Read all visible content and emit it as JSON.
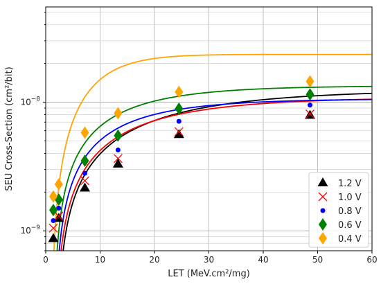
{
  "chart_data": {
    "type": "scatter",
    "title": "",
    "xlabel": "LET (MeV.cm²/mg)",
    "ylabel": "SEU Cross-Section (cm²/bit)",
    "xlim": [
      0,
      60
    ],
    "ylim": [
      7e-10,
      5.5e-08
    ],
    "yscale": "log",
    "grid": true,
    "legend_position": "bottom-right",
    "x_ticks": [
      "0",
      "10",
      "20",
      "30",
      "40",
      "50",
      "60"
    ],
    "y_ticks": [
      {
        "value": 1e-09,
        "base": "10",
        "exp": "−9"
      },
      {
        "value": 1e-08,
        "base": "10",
        "exp": "−8"
      }
    ],
    "series": [
      {
        "name": "1.2 V",
        "marker": "triangle",
        "color": "#000000",
        "x": [
          1.4,
          2.4,
          7.2,
          13.3,
          24.5,
          48.6
        ],
        "y": [
          8.7e-10,
          1.25e-09,
          2.15e-09,
          3.3e-09,
          5.6e-09,
          7.9e-09
        ],
        "fit": {
          "sat": 1.25e-08,
          "x0": 2.0,
          "w": 21,
          "s": 1.0
        }
      },
      {
        "name": "1.0 V",
        "marker": "x",
        "color": "#ff0000",
        "x": [
          1.4,
          2.4,
          7.2,
          13.3,
          24.5,
          48.6
        ],
        "y": [
          1.05e-09,
          1.3e-09,
          2.45e-09,
          3.65e-09,
          5.9e-09,
          8.1e-09
        ],
        "fit": {
          "sat": 1.09e-08,
          "x0": 1.7,
          "w": 17,
          "s": 1.0
        }
      },
      {
        "name": "0.8 V",
        "marker": "circle",
        "color": "#0000ff",
        "x": [
          1.4,
          2.4,
          7.2,
          13.3,
          24.5,
          48.6
        ],
        "y": [
          1.2e-09,
          1.5e-09,
          2.8e-09,
          4.25e-09,
          7.1e-09,
          9.5e-09
        ],
        "fit": {
          "sat": 1.06e-08,
          "x0": 1.6,
          "w": 13,
          "s": 1.0
        }
      },
      {
        "name": "0.6 V",
        "marker": "diamond",
        "color": "#008000",
        "x": [
          1.4,
          2.4,
          7.2,
          13.3,
          24.5,
          48.6
        ],
        "y": [
          1.45e-09,
          1.75e-09,
          3.5e-09,
          5.5e-09,
          8.9e-09,
          1.15e-08
        ],
        "fit": {
          "sat": 1.34e-08,
          "x0": 1.4,
          "w": 13,
          "s": 1.0
        }
      },
      {
        "name": "0.4 V",
        "marker": "diamond",
        "color": "#ffa500",
        "x": [
          1.4,
          2.4,
          7.2,
          13.3,
          24.5,
          48.6
        ],
        "y": [
          1.85e-09,
          2.3e-09,
          5.8e-09,
          8.2e-09,
          1.2e-08,
          1.45e-08
        ],
        "fit": {
          "sat": 2.35e-08,
          "x0": 0.9,
          "w": 9,
          "s": 1.3
        }
      }
    ]
  }
}
